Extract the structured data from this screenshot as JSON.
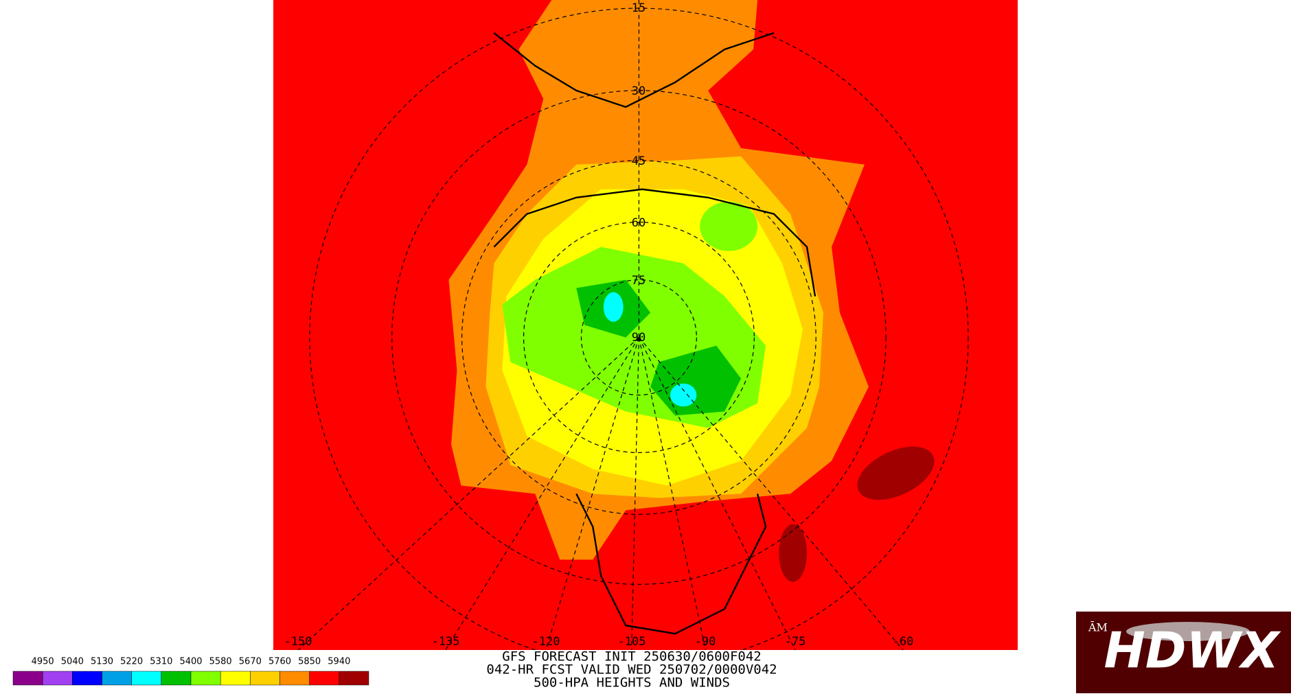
{
  "map": {
    "lat_labels": [
      "15",
      "30",
      "45",
      "60",
      "75",
      "90"
    ],
    "lon_labels": [
      "-150",
      "-135",
      "-120",
      "-105",
      "-90",
      "-75",
      "-60"
    ]
  },
  "title": {
    "lines": [
      "GFS FORECAST INIT 250630/0600F042",
      "042-HR FCST VALID WED 250702/0000V042",
      "500-HPA HEIGHTS AND WINDS"
    ]
  },
  "legend": {
    "labels": [
      4950,
      5040,
      5130,
      5220,
      5310,
      5400,
      5580,
      5670,
      5760,
      5850,
      5940
    ],
    "colors": [
      "#8b008b",
      "#a040f0",
      "#0000ff",
      "#00a0e6",
      "#00ffff",
      "#00c000",
      "#80ff00",
      "#ffff00",
      "#ffd000",
      "#ff8c00",
      "#ff0000",
      "#a00000"
    ]
  },
  "logo": {
    "text": "HDWX"
  }
}
